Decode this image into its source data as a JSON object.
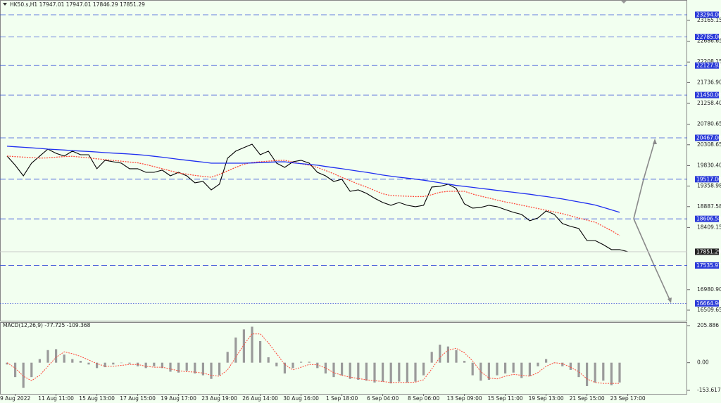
{
  "chart_data": [
    {
      "type": "line",
      "title": "HK50.s,H1 17947.01 17947.01 17846.29 17851.29",
      "ylim": [
        16267,
        23633
      ],
      "yticks": [
        23165.15,
        22686.65,
        22208.15,
        {
          "value": 21736.9,
          "label": "21736.90"
        },
        {
          "value": 21258.4,
          "label": "21258.40"
        },
        20780.65,
        20308.65,
        {
          "value": 19830.4,
          "label": "19830.40"
        },
        19358.98,
        18887.58,
        18409.15,
        {
          "value": 16980.9,
          "label": "16980.90"
        },
        16509.65
      ],
      "levels": [
        {
          "value": 23294,
          "label": "23294.00"
        },
        {
          "value": 22785,
          "label": "22785.00"
        },
        {
          "value": 22127.93,
          "label": "22127.93"
        },
        {
          "value": 21450,
          "label": "21450.00"
        },
        {
          "value": 20467,
          "label": "20467.00"
        },
        {
          "value": 19517,
          "label": "19517.00"
        },
        {
          "value": 18606.58,
          "label": "18606.58"
        },
        {
          "value": 17535.97,
          "label": "17535.97"
        },
        {
          "value": 16664.96,
          "label": "16664.96"
        }
      ],
      "last_price": {
        "value": 17851.29,
        "label": "17851.29"
      },
      "series": [
        {
          "color": "#000000",
          "values": [
            20048,
            19838,
            19595,
            19886,
            20048,
            20209,
            20112,
            20048,
            20161,
            20080,
            20080,
            19757,
            19951,
            19918,
            19886,
            19757,
            19757,
            19676,
            19676,
            19725,
            19595,
            19676,
            19595,
            19434,
            19466,
            19272,
            19402,
            19999,
            20161,
            20242,
            20322,
            20080,
            20161,
            19886,
            19789,
            19918,
            19951,
            19886,
            19676,
            19595,
            19466,
            19515,
            19240,
            19272,
            19192,
            19079,
            18982,
            18917,
            18982,
            18917,
            18885,
            18917,
            19337,
            19353,
            19402,
            19305,
            18950,
            18853,
            18869,
            18917,
            18885,
            18820,
            18756,
            18707,
            18562,
            18627,
            18788,
            18707,
            18497,
            18433,
            18384,
            18109,
            18109,
            18013,
            17900,
            17900,
            17851
          ]
        },
        {
          "color": "#ff4a3a",
          "dashed": true,
          "values": [
            20048,
            20036,
            20025,
            20014,
            20002,
            20006,
            20022,
            20038,
            20043,
            20025,
            20006,
            19986,
            19967,
            19949,
            19931,
            19912,
            19893,
            19854,
            19806,
            19757,
            19709,
            19659,
            19633,
            19605,
            19581,
            19563,
            19628,
            19709,
            19789,
            19860,
            19902,
            19918,
            19933,
            19947,
            19951,
            19909,
            19873,
            19838,
            19786,
            19718,
            19641,
            19557,
            19483,
            19408,
            19337,
            19260,
            19182,
            19140,
            19132,
            19126,
            19118,
            19119,
            19160,
            19216,
            19240,
            19240,
            19240,
            19176,
            19127,
            19084,
            19037,
            18995,
            18959,
            18920,
            18882,
            18843,
            18804,
            18765,
            18726,
            18675,
            18626,
            18578,
            18530,
            18433,
            18336,
            18223,
            null
          ]
        },
        {
          "color": "#1e2ef0",
          "values": [
            20274,
            20261,
            20250,
            20237,
            20225,
            20209,
            20198,
            20187,
            20174,
            20164,
            20153,
            20142,
            20128,
            20117,
            20107,
            20096,
            20083,
            20064,
            20043,
            20022,
            19999,
            19975,
            19954,
            19931,
            19909,
            19886,
            19886,
            19886,
            19886,
            19886,
            19891,
            19899,
            19906,
            19914,
            19918,
            19893,
            19875,
            19856,
            19838,
            19810,
            19783,
            19757,
            19731,
            19702,
            19676,
            19644,
            19612,
            19586,
            19563,
            19541,
            19518,
            19495,
            19466,
            19434,
            19405,
            19374,
            19353,
            19329,
            19305,
            19284,
            19261,
            19237,
            19216,
            19193,
            19171,
            19143,
            19119,
            19092,
            19063,
            19030,
            18995,
            18962,
            18925,
            18869,
            18812,
            18756,
            null
          ]
        }
      ]
    },
    {
      "type": "bar",
      "title": "MACD(12,26,9) -77.725 -109.368",
      "ylim": [
        -173.2,
        225.4
      ],
      "yticks": [
        205.886,
        {
          "value": 0,
          "label": "0.00"
        },
        -153.617
      ],
      "categories": [
        null,
        "9 Aug 2022",
        null,
        null,
        null,
        null,
        "11 Aug 11:00",
        null,
        null,
        null,
        null,
        "15 Aug 13:00",
        null,
        null,
        null,
        null,
        "17 Aug 15:00",
        null,
        null,
        null,
        null,
        "19 Aug 17:00",
        null,
        null,
        null,
        null,
        "23 Aug 19:00",
        null,
        null,
        null,
        null,
        "26 Aug 14:00",
        null,
        null,
        null,
        null,
        "30 Aug 16:00",
        null,
        null,
        null,
        null,
        "1 Sep 18:00",
        null,
        null,
        null,
        null,
        "6 Sep 04:00",
        null,
        null,
        null,
        null,
        "8 Sep 06:00",
        null,
        null,
        null,
        null,
        "13 Sep 09:00",
        null,
        null,
        null,
        null,
        "15 Sep 11:00",
        null,
        null,
        null,
        null,
        "19 Sep 13:00",
        null,
        null,
        null,
        null,
        "21 Sep 15:00",
        null,
        null,
        null,
        null,
        "23 Sep 17:00"
      ],
      "color": "#9a9a9a",
      "values": [
        -10,
        -80,
        -140,
        -80,
        20,
        70,
        75,
        45,
        20,
        10,
        -10,
        -30,
        -25,
        -10,
        0,
        -5,
        -20,
        -30,
        -20,
        -30,
        -50,
        -55,
        -45,
        -60,
        -70,
        -90,
        -70,
        60,
        140,
        185,
        200,
        120,
        30,
        -20,
        -60,
        -30,
        5,
        5,
        -30,
        -60,
        -80,
        -70,
        -90,
        -95,
        -100,
        -110,
        -105,
        -115,
        -105,
        -110,
        -105,
        -70,
        60,
        100,
        90,
        70,
        10,
        -70,
        -100,
        -95,
        -70,
        -60,
        -55,
        -85,
        -75,
        -20,
        20,
        0,
        -20,
        -40,
        -80,
        -130,
        -110,
        -100,
        -125,
        -110,
        null
      ],
      "signal": {
        "color": "#ff4a3a",
        "values": [
          0,
          -30,
          -75,
          -100,
          -70,
          -20,
          30,
          60,
          50,
          35,
          15,
          -5,
          -20,
          -20,
          -15,
          -10,
          -10,
          -20,
          -25,
          -25,
          -35,
          -45,
          -50,
          -52,
          -58,
          -70,
          -75,
          -40,
          30,
          100,
          160,
          160,
          110,
          50,
          -10,
          -40,
          -25,
          -10,
          -12,
          -30,
          -55,
          -70,
          -80,
          -88,
          -95,
          -100,
          -105,
          -110,
          -110,
          -110,
          -108,
          -95,
          -35,
          30,
          70,
          80,
          55,
          10,
          -50,
          -85,
          -90,
          -75,
          -65,
          -70,
          -75,
          -55,
          -20,
          0,
          -5,
          -25,
          -50,
          -90,
          -110,
          -115,
          -115,
          -115,
          null
        ]
      }
    }
  ]
}
